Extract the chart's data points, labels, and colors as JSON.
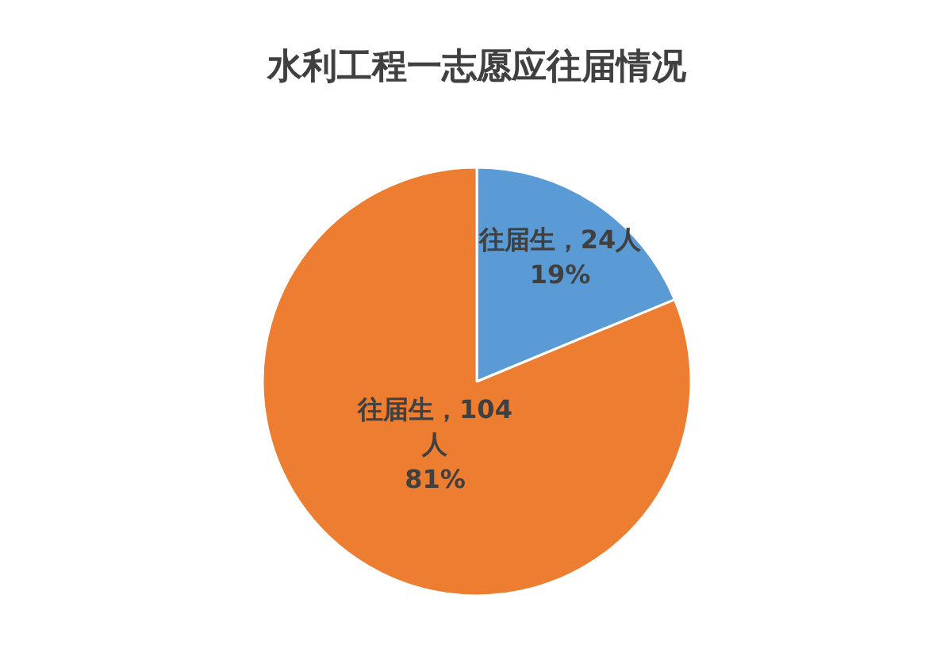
{
  "chart_data": {
    "type": "pie",
    "title": "水利工程一志愿应往届情况",
    "categories": [
      "往届生",
      "往届生"
    ],
    "values": [
      24,
      104
    ],
    "colors": [
      "#5b9bd5",
      "#ed7d31"
    ],
    "value_labels": [
      "，24人\n19%",
      "，104\n人\n81%"
    ]
  }
}
